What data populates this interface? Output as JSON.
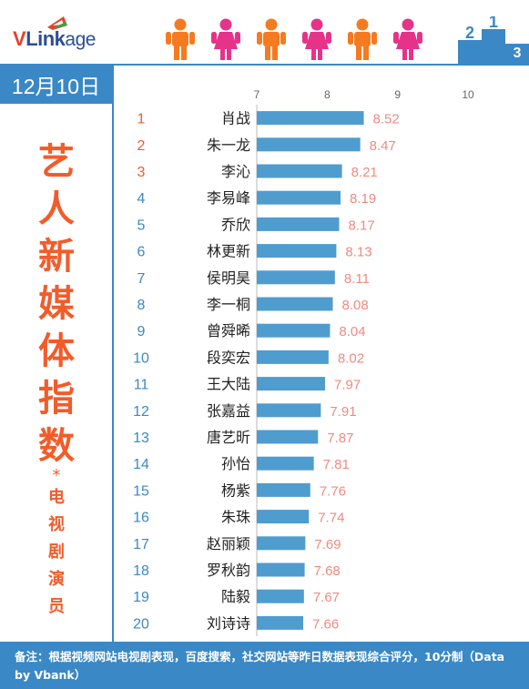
{
  "logo": {
    "brand_red": "V",
    "brand_blue": "Link",
    "brand_rest": "age"
  },
  "date": "12月10日",
  "title_chars": [
    "艺",
    "人",
    "新",
    "媒",
    "体",
    "指",
    "数"
  ],
  "title_star": "*",
  "subtitle_chars": [
    "电",
    "视",
    "剧",
    "演",
    "员"
  ],
  "footer": "备注：根据视频网站电视剧表现，百度搜索，社交网站等昨日数据表现综合评分，10分制（Data by Vbank）",
  "colors": {
    "accent_blue": "#3a88c6",
    "bar": "#4f9ccf",
    "rank_red": "#f25c2a",
    "rank_blue": "#3a88c6",
    "value": "#f08a80",
    "male": "#f47b20",
    "female": "#e6338a"
  },
  "chart_data": {
    "type": "bar",
    "orientation": "horizontal",
    "xlim": [
      7,
      10
    ],
    "xticks": [
      7,
      8,
      9,
      10
    ],
    "ranks": [
      1,
      2,
      3,
      4,
      5,
      6,
      7,
      8,
      9,
      10,
      11,
      12,
      13,
      14,
      15,
      16,
      17,
      18,
      19,
      20
    ],
    "categories": [
      "肖战",
      "朱一龙",
      "李沁",
      "李易峰",
      "乔欣",
      "林更新",
      "侯明昊",
      "李一桐",
      "曾舜晞",
      "段奕宏",
      "王大陆",
      "张嘉益",
      "唐艺昕",
      "孙怡",
      "杨紫",
      "朱珠",
      "赵丽颖",
      "罗秋韵",
      "陆毅",
      "刘诗诗"
    ],
    "values": [
      8.52,
      8.47,
      8.21,
      8.19,
      8.17,
      8.13,
      8.11,
      8.08,
      8.04,
      8.02,
      7.97,
      7.91,
      7.87,
      7.81,
      7.76,
      7.74,
      7.69,
      7.68,
      7.67,
      7.66
    ]
  }
}
